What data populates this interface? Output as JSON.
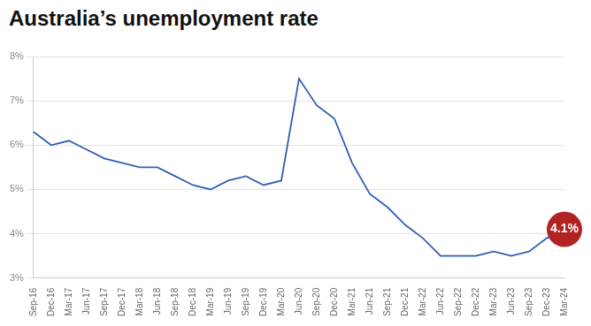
{
  "chart_data": {
    "type": "line",
    "title": "Australia’s unemployment rate",
    "categories": [
      "Sep-16",
      "Dec-16",
      "Mar-17",
      "Jun-17",
      "Sep-17",
      "Dec-17",
      "Mar-18",
      "Jun-18",
      "Sep-18",
      "Dec-18",
      "Mar-19",
      "Jun-19",
      "Sep-19",
      "Dec-19",
      "Mar-20",
      "Jun-20",
      "Sep-20",
      "Dec-20",
      "Mar-21",
      "Jun-21",
      "Sep-21",
      "Dec-21",
      "Mar-22",
      "Jun-22",
      "Sep-22",
      "Dec-22",
      "Mar-23",
      "Jun-23",
      "Sep-23",
      "Dec-23",
      "Mar-24"
    ],
    "values": [
      6.3,
      6.0,
      6.1,
      5.9,
      5.7,
      5.6,
      5.5,
      5.5,
      5.3,
      5.1,
      5.0,
      5.2,
      5.3,
      5.1,
      5.2,
      7.5,
      6.9,
      6.6,
      5.6,
      4.9,
      4.6,
      4.2,
      3.9,
      3.5,
      3.5,
      3.5,
      3.6,
      3.5,
      3.6,
      3.9,
      4.1
    ],
    "value_labels": [
      null,
      null,
      null,
      null,
      null,
      null,
      null,
      null,
      null,
      null,
      null,
      null,
      null,
      null,
      null,
      null,
      null,
      null,
      null,
      null,
      null,
      null,
      null,
      null,
      null,
      null,
      null,
      null,
      null,
      null,
      "4.1%"
    ],
    "color": "#2f5fb3",
    "ylim": [
      3,
      8
    ],
    "yticks": [
      {
        "value": 3,
        "label": "3%"
      },
      {
        "value": 4,
        "label": "4%"
      },
      {
        "value": 5,
        "label": "5%"
      },
      {
        "value": 6,
        "label": "6%"
      },
      {
        "value": 7,
        "label": "7%"
      },
      {
        "value": 8,
        "label": "8%"
      }
    ],
    "grid": true
  }
}
